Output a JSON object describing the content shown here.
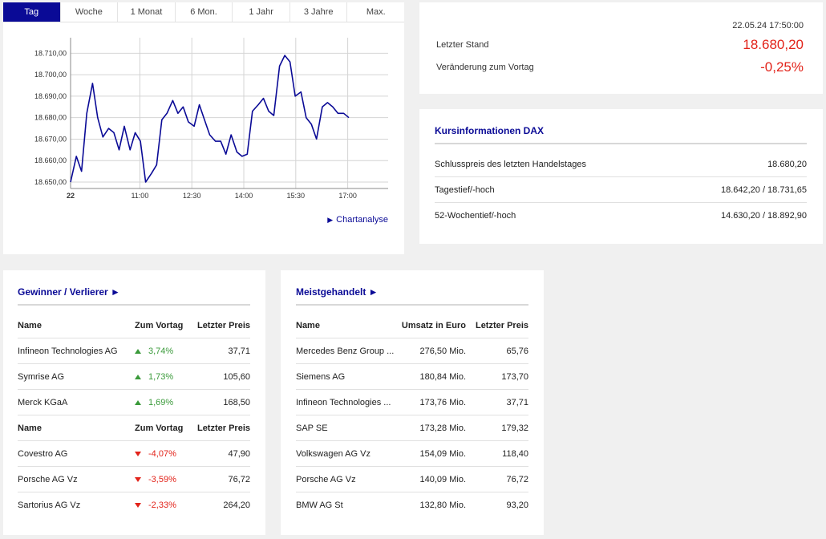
{
  "chart_tabs": [
    "Tag",
    "Woche",
    "1 Monat",
    "6 Mon.",
    "1 Jahr",
    "3 Jahre",
    "Max."
  ],
  "chart_tabs_active": "Tag",
  "chart_data": {
    "type": "line",
    "title": "",
    "xlabel": "",
    "ylabel": "",
    "x_ticks": [
      "22",
      "11:00",
      "12:30",
      "14:00",
      "15:30",
      "17:00"
    ],
    "y_ticks": [
      "18.650,00",
      "18.660,00",
      "18.670,00",
      "18.680,00",
      "18.690,00",
      "18.700,00",
      "18.710,00"
    ],
    "ylim": [
      18647,
      18715
    ],
    "x_range_minutes": [
      540,
      1090
    ],
    "grid": true,
    "color": "#0a0a96",
    "series": [
      {
        "name": "",
        "points": [
          [
            540,
            18650
          ],
          [
            550,
            18662
          ],
          [
            559,
            18655
          ],
          [
            568,
            18682
          ],
          [
            578,
            18696
          ],
          [
            587,
            18680
          ],
          [
            596,
            18671
          ],
          [
            606,
            18675
          ],
          [
            615,
            18673
          ],
          [
            624,
            18665
          ],
          [
            633,
            18676
          ],
          [
            643,
            18665
          ],
          [
            652,
            18673
          ],
          [
            661,
            18669
          ],
          [
            670,
            18650
          ],
          [
            680,
            18654
          ],
          [
            689,
            18658
          ],
          [
            698,
            18679
          ],
          [
            707,
            18682
          ],
          [
            717,
            18688
          ],
          [
            726,
            18682
          ],
          [
            735,
            18685
          ],
          [
            744,
            18678
          ],
          [
            754,
            18676
          ],
          [
            763,
            18686
          ],
          [
            772,
            18679
          ],
          [
            781,
            18672
          ],
          [
            791,
            18669
          ],
          [
            800,
            18669
          ],
          [
            809,
            18663
          ],
          [
            818,
            18672
          ],
          [
            828,
            18664
          ],
          [
            837,
            18662
          ],
          [
            846,
            18663
          ],
          [
            855,
            18683
          ],
          [
            865,
            18686
          ],
          [
            874,
            18689
          ],
          [
            883,
            18683
          ],
          [
            892,
            18681
          ],
          [
            902,
            18704
          ],
          [
            911,
            18709
          ],
          [
            920,
            18706
          ],
          [
            929,
            18690
          ],
          [
            939,
            18692
          ],
          [
            948,
            18680
          ],
          [
            957,
            18677
          ],
          [
            966,
            18670
          ],
          [
            976,
            18685
          ],
          [
            985,
            18687
          ],
          [
            994,
            18685
          ],
          [
            1003,
            18682
          ],
          [
            1013,
            18682
          ],
          [
            1022,
            18680
          ]
        ]
      }
    ]
  },
  "chart_link": "Chartanalyse",
  "quote": {
    "timestamp": "22.05.24 17:50:00",
    "last_label": "Letzter Stand",
    "last_value": "18.680,20",
    "change_label": "Veränderung zum Vortag",
    "change_value": "-0,25%",
    "accent_negative": "#e2231a"
  },
  "info": {
    "title": "Kursinformationen DAX",
    "rows": [
      {
        "label": "Schlusspreis des letzten Handelstages",
        "value": "18.680,20"
      },
      {
        "label": "Tagestief/-hoch",
        "value": "18.642,20 / 18.731,65"
      },
      {
        "label": "52-Wochentief/-hoch",
        "value": "14.630,20 / 18.892,90"
      }
    ]
  },
  "gainers_losers": {
    "title": "Gewinner / Verlierer ►",
    "header": {
      "name": "Name",
      "change": "Zum Vortag",
      "price": "Letzter Preis"
    },
    "gainers": [
      {
        "name": "Infineon Technologies AG",
        "change": "3,74%",
        "price": "37,71"
      },
      {
        "name": "Symrise AG",
        "change": "1,73%",
        "price": "105,60"
      },
      {
        "name": "Merck KGaA",
        "change": "1,69%",
        "price": "168,50"
      }
    ],
    "losers": [
      {
        "name": "Covestro AG",
        "change": "-4,07%",
        "price": "47,90"
      },
      {
        "name": "Porsche AG Vz",
        "change": "-3,59%",
        "price": "76,72"
      },
      {
        "name": "Sartorius AG Vz",
        "change": "-2,33%",
        "price": "264,20"
      }
    ]
  },
  "most_traded": {
    "title": "Meistgehandelt ►",
    "header": {
      "name": "Name",
      "turnover": "Umsatz in Euro",
      "price": "Letzter Preis"
    },
    "rows": [
      {
        "name": "Mercedes Benz Group ...",
        "turnover": "276,50 Mio.",
        "price": "65,76"
      },
      {
        "name": "Siemens AG",
        "turnover": "180,84 Mio.",
        "price": "173,70"
      },
      {
        "name": "Infineon Technologies ...",
        "turnover": "173,76 Mio.",
        "price": "37,71"
      },
      {
        "name": "SAP SE",
        "turnover": "173,28 Mio.",
        "price": "179,32"
      },
      {
        "name": "Volkswagen AG Vz",
        "turnover": "154,09 Mio.",
        "price": "118,40"
      },
      {
        "name": "Porsche AG Vz",
        "turnover": "140,09 Mio.",
        "price": "76,72"
      },
      {
        "name": "BMW AG St",
        "turnover": "132,80 Mio.",
        "price": "93,20"
      }
    ]
  }
}
